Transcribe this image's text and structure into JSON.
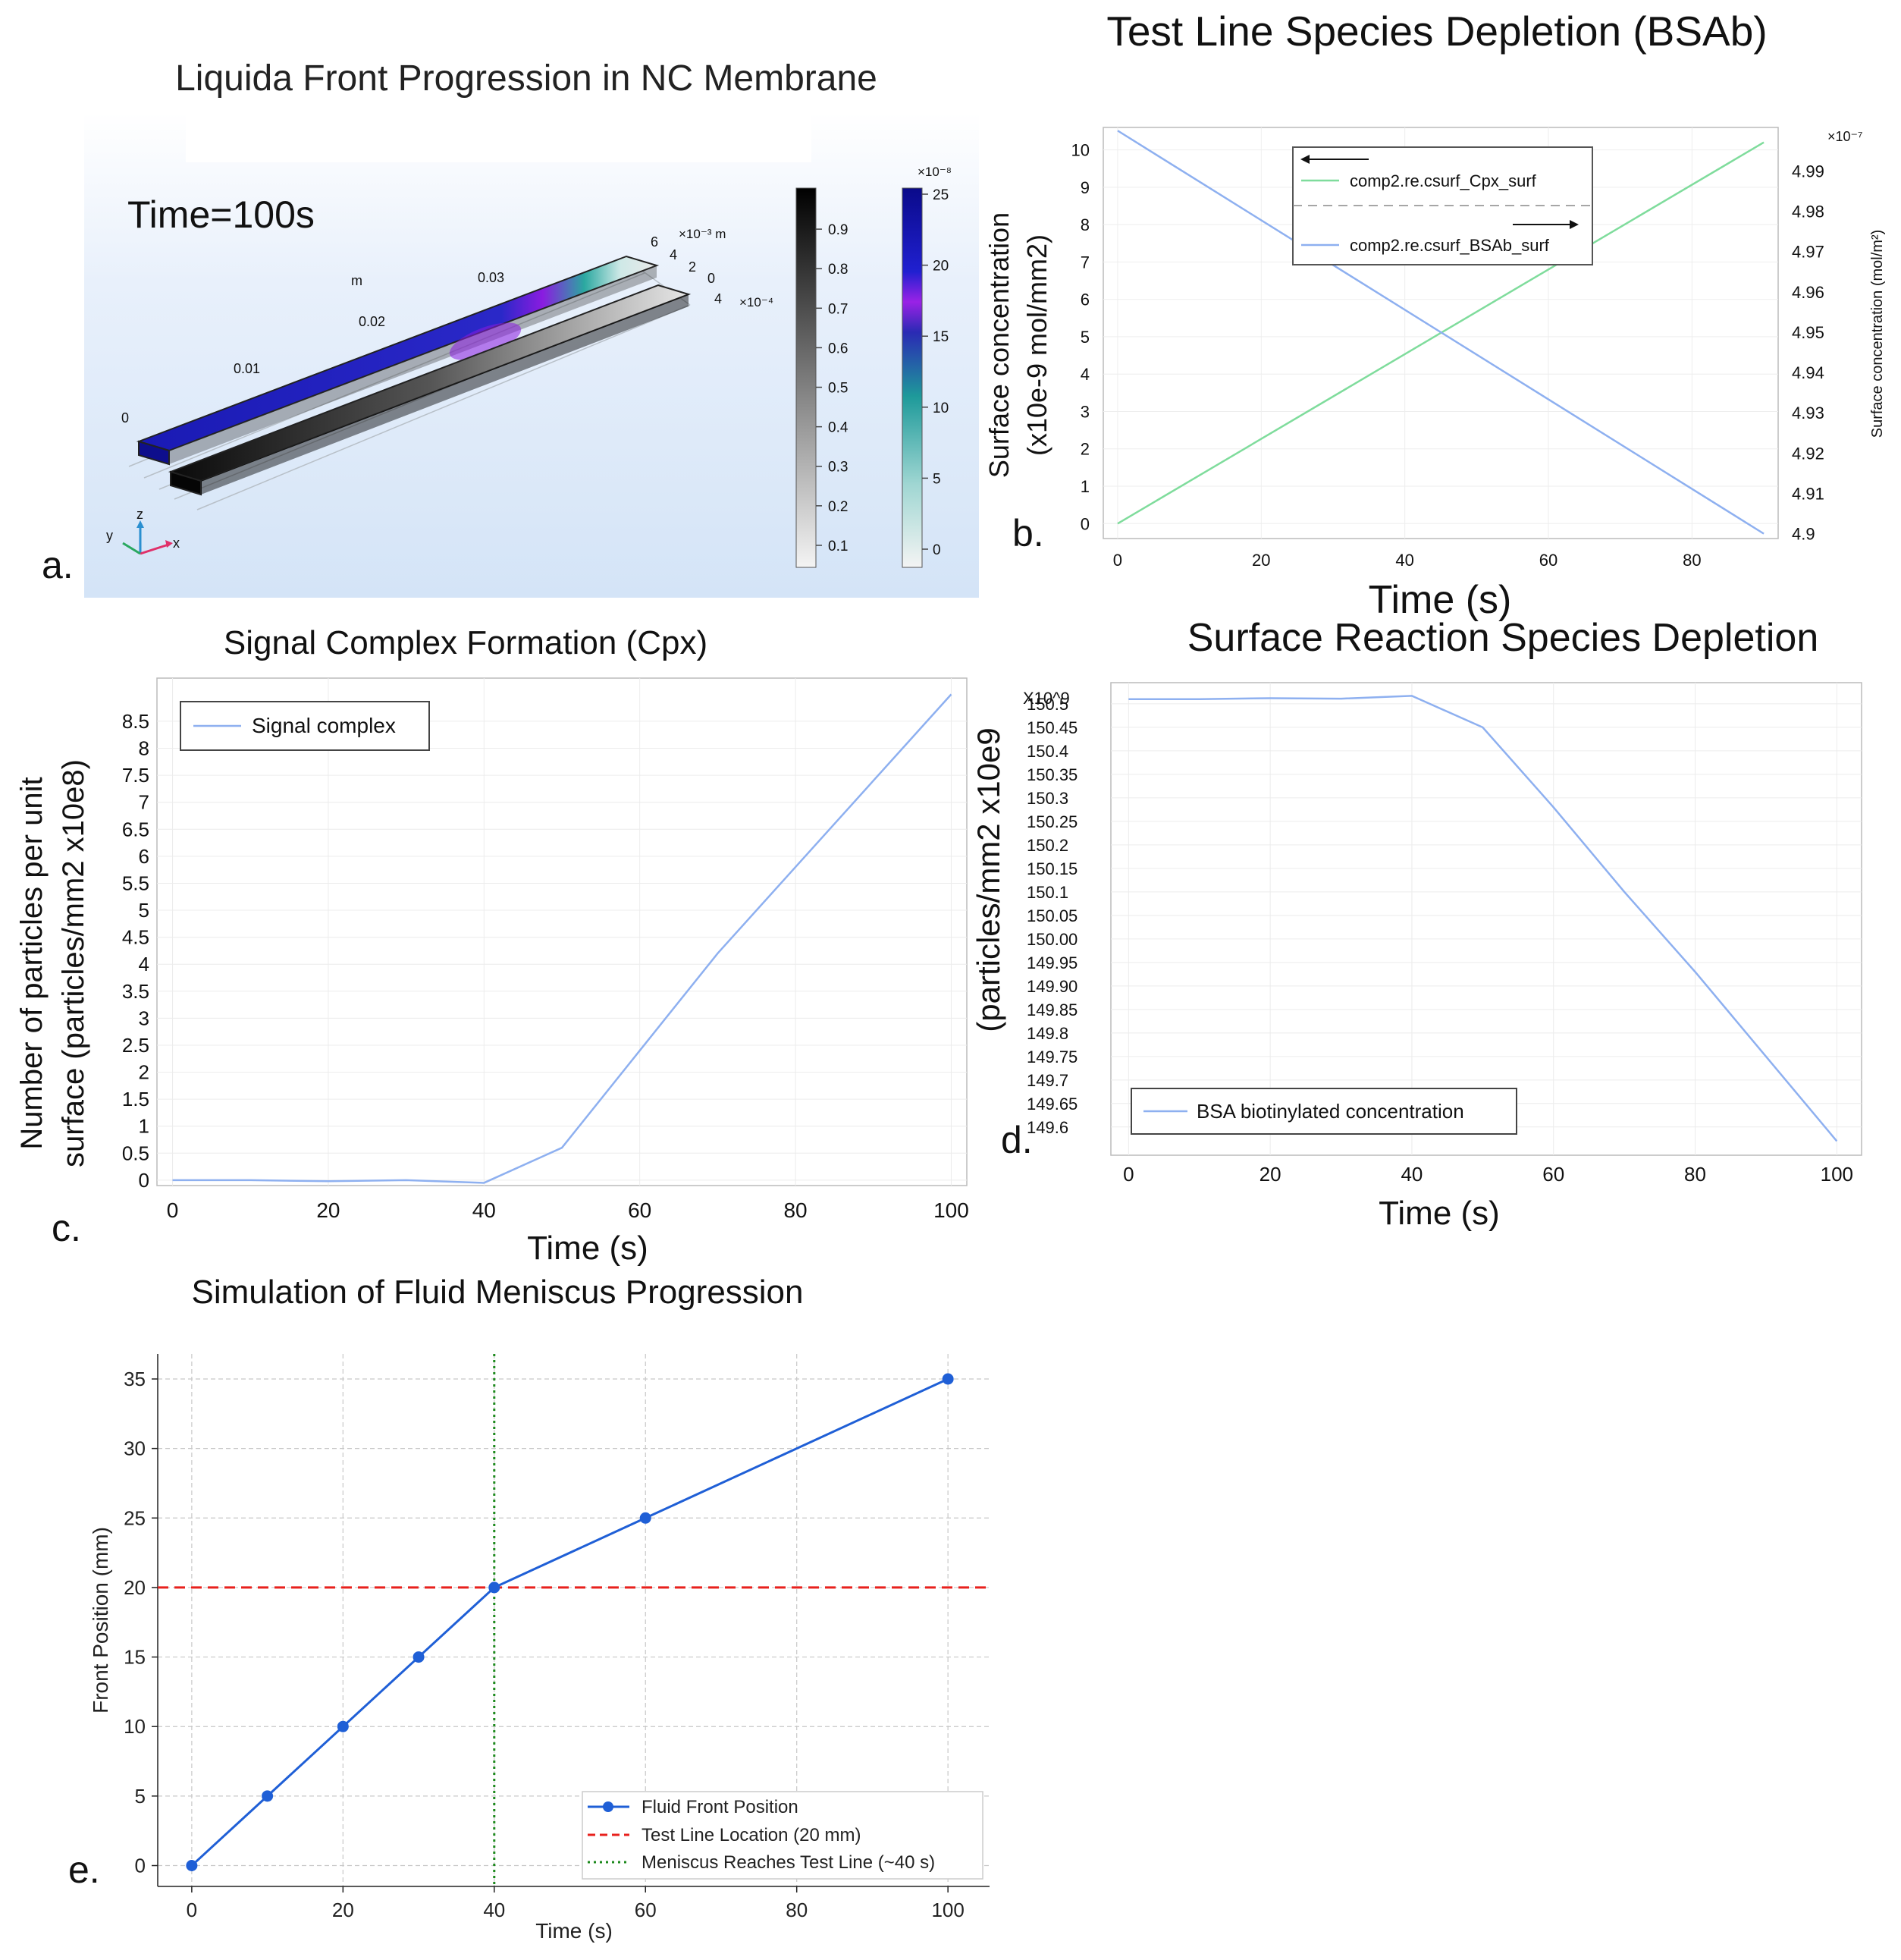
{
  "panels": {
    "a": {
      "letter": "a.",
      "title": "Liquida Front Progression in NC Membrane",
      "time_label": "Time=100s",
      "axis_m_label": "m",
      "axis_x_ticks": [
        "0",
        "0.01",
        "0.02",
        "0.03"
      ],
      "axis_y_ticks": [
        "6",
        "4",
        "2",
        "0"
      ],
      "axis_y_exp": "×10⁻³ m",
      "axis_z_ticks": [
        "4"
      ],
      "axis_z_exp": "×10⁻⁴",
      "gray_bar_ticks": [
        "0.9",
        "0.8",
        "0.7",
        "0.6",
        "0.5",
        "0.4",
        "0.3",
        "0.2",
        "0.1"
      ],
      "color_bar_exp": "×10⁻⁸",
      "color_bar_ticks": [
        "25",
        "20",
        "15",
        "10",
        "5",
        "0"
      ],
      "triad": {
        "x": "x",
        "y": "y",
        "z": "z"
      },
      "colors": {
        "background": "#dce9f8",
        "fluid": "#1a1ab4",
        "front": "#8a1ce0",
        "gradient_teal": "#2aa8a0"
      }
    },
    "b": {
      "letter": "b.",
      "title": "Test Line Species Depletion (BSAb)",
      "legend_cpx": "comp2.re.csurf_Cpx_surf",
      "legend_bsab": "comp2.re.csurf_BSAb_surf",
      "right_exp": "×10⁻⁷"
    },
    "c": {
      "letter": "c.",
      "title": "Signal Complex Formation (Cpx)",
      "legend": "Signal complex"
    },
    "d": {
      "letter": "d.",
      "title": "Surface Reaction Species Depletion",
      "multiplier": "X10^9",
      "legend": "BSA biotinylated concentration"
    },
    "e": {
      "letter": "e.",
      "title": "Simulation of Fluid Meniscus Progression",
      "legend_front": "Fluid Front Position",
      "legend_testline": "Test Line Location (20 mm)",
      "legend_meniscus": "Meniscus Reaches Test Line (~40 s)"
    }
  },
  "chart_data": [
    {
      "id": "b",
      "type": "line",
      "title": "Test Line Species Depletion (BSAb)",
      "xlabel": "Time (s)",
      "ylabel": "Surface concentration (x10e-9 mol/mm2)",
      "y2label": "Surface concentration (mol/m²)",
      "xlim": [
        -2,
        92
      ],
      "ylim": [
        -0.4,
        10.6
      ],
      "y2lim": [
        4.8988,
        5.0008
      ],
      "x_ticks": [
        0,
        20,
        40,
        60,
        80
      ],
      "y_ticks": [
        0,
        1,
        2,
        3,
        4,
        5,
        6,
        7,
        8,
        9,
        10
      ],
      "y2_ticks": [
        "4.9",
        "4.91",
        "4.92",
        "4.93",
        "4.94",
        "4.95",
        "4.96",
        "4.97",
        "4.98",
        "4.99"
      ],
      "y2_tick_values": [
        4.9,
        4.91,
        4.92,
        4.93,
        4.94,
        4.95,
        4.96,
        4.97,
        4.98,
        4.99
      ],
      "series": [
        {
          "name": "comp2.re.csurf_Cpx_surf",
          "axis": "left",
          "color": "#7fdc9c",
          "x": [
            0,
            90
          ],
          "y": [
            0,
            10.2
          ]
        },
        {
          "name": "comp2.re.csurf_BSAb_surf",
          "axis": "right",
          "color": "#8eb0f0",
          "x": [
            0,
            90
          ],
          "y": [
            5.0,
            4.9
          ]
        }
      ]
    },
    {
      "id": "c",
      "type": "line",
      "title": "Signal Complex Formation (Cpx)",
      "xlabel": "Time (s)",
      "ylabel_lines": [
        "Number of particles per unit",
        "surface (particles/mm2 x10e8)"
      ],
      "xlim": [
        -2,
        102
      ],
      "ylim": [
        -0.1,
        9.3
      ],
      "x_ticks": [
        0,
        20,
        40,
        60,
        80,
        100
      ],
      "y_ticks": [
        "0",
        "0.5",
        "1",
        "1.5",
        "2",
        "2.5",
        "3",
        "3.5",
        "4",
        "4.5",
        "5",
        "5.5",
        "6",
        "6.5",
        "7",
        "7.5",
        "8",
        "8.5"
      ],
      "y_tick_values": [
        0,
        0.5,
        1,
        1.5,
        2,
        2.5,
        3,
        3.5,
        4,
        4.5,
        5,
        5.5,
        6,
        6.5,
        7,
        7.5,
        8,
        8.5
      ],
      "series": [
        {
          "name": "Signal complex",
          "color": "#8eb0f0",
          "x": [
            0,
            10,
            20,
            30,
            40,
            50,
            60,
            70,
            80,
            90,
            100
          ],
          "y": [
            0,
            0,
            -0.02,
            0,
            -0.05,
            0.6,
            2.4,
            4.2,
            5.8,
            7.4,
            9.0
          ]
        }
      ]
    },
    {
      "id": "d",
      "type": "line",
      "title": "Surface Reaction Species Depletion",
      "xlabel": "Time (s)",
      "ylabel": "(particles/mm2 x10e9",
      "xlim": [
        -2.5,
        103.5
      ],
      "ylim": [
        149.54,
        150.545
      ],
      "x_ticks": [
        0,
        20,
        40,
        60,
        80,
        100
      ],
      "y_ticks": [
        "149.6",
        "149.65",
        "149.7",
        "149.75",
        "149.8",
        "149.85",
        "149.90",
        "149.95",
        "150.00",
        "150.05",
        "150.1",
        "150.15",
        "150.2",
        "150.25",
        "150.3",
        "150.35",
        "150.4",
        "150.45",
        "150.5"
      ],
      "y_tick_values": [
        149.6,
        149.65,
        149.7,
        149.75,
        149.8,
        149.85,
        149.9,
        149.95,
        150.0,
        150.05,
        150.1,
        150.15,
        150.2,
        150.25,
        150.3,
        150.35,
        150.4,
        150.45,
        150.5
      ],
      "series": [
        {
          "name": "BSA biotinylated concentration",
          "color": "#8eb0f0",
          "x": [
            0,
            10,
            20,
            30,
            40,
            50,
            60,
            70,
            80,
            90,
            100
          ],
          "y": [
            150.51,
            150.51,
            150.512,
            150.511,
            150.517,
            150.45,
            150.28,
            150.1,
            149.93,
            149.75,
            149.57
          ]
        }
      ]
    },
    {
      "id": "e",
      "type": "line",
      "title": "Simulation of Fluid Meniscus Progression",
      "xlabel": "Time (s)",
      "ylabel": "Front Position (mm)",
      "xlim": [
        -4.5,
        105.5
      ],
      "ylim": [
        -1.5,
        36.8
      ],
      "x_ticks": [
        0,
        20,
        40,
        60,
        80,
        100
      ],
      "y_ticks": [
        0,
        5,
        10,
        15,
        20,
        25,
        30,
        35
      ],
      "series": [
        {
          "name": "Fluid Front Position",
          "color": "#1f5fd6",
          "marker": "circle",
          "x": [
            0,
            10,
            20,
            30,
            40,
            60,
            100
          ],
          "y": [
            0,
            5,
            10,
            15,
            20,
            25,
            35
          ]
        }
      ],
      "hlines": [
        {
          "name": "Test Line Location (20 mm)",
          "y": 20,
          "color": "#e8211d",
          "style": "dashed"
        }
      ],
      "vlines": [
        {
          "name": "Meniscus Reaches Test Line (~40 s)",
          "x": 40,
          "color": "#1d8a1d",
          "style": "dotted"
        }
      ]
    }
  ]
}
